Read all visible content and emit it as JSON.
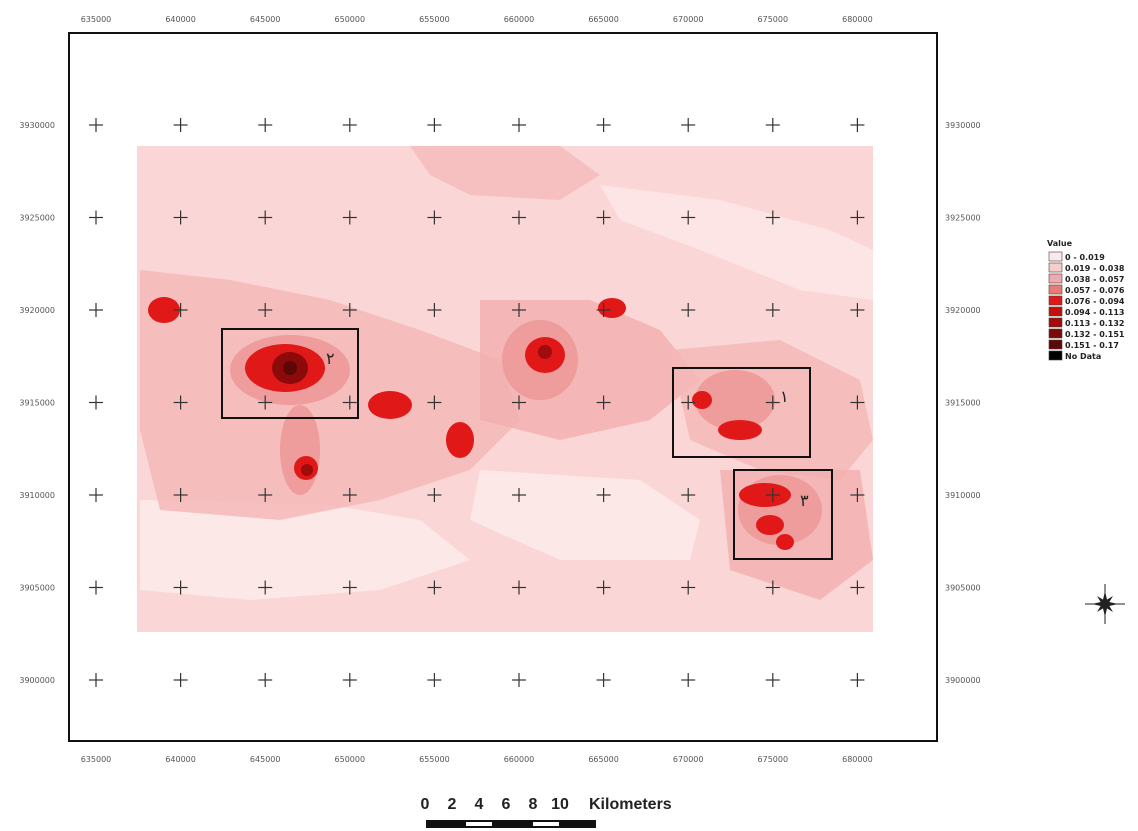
{
  "map": {
    "x_ticks": [
      "635000",
      "640000",
      "645000",
      "650000",
      "655000",
      "660000",
      "665000",
      "670000",
      "675000",
      "680000"
    ],
    "y_ticks": [
      "3930000",
      "3925000",
      "3920000",
      "3915000",
      "3910000",
      "3905000",
      "3900000"
    ]
  },
  "sites": [
    {
      "label": "١"
    },
    {
      "label": "٢"
    },
    {
      "label": "٣"
    }
  ],
  "legend": {
    "title": "Value",
    "items": [
      {
        "label": "0 - 0.019",
        "color": "#fbe9e9"
      },
      {
        "label": "0.019 - 0.038",
        "color": "#f6cccc"
      },
      {
        "label": "0.038 - 0.057",
        "color": "#efaaaa"
      },
      {
        "label": "0.057 - 0.076",
        "color": "#e97a7a"
      },
      {
        "label": "0.076 - 0.094",
        "color": "#e01818"
      },
      {
        "label": "0.094 - 0.113",
        "color": "#c40f0f"
      },
      {
        "label": "0.113 - 0.132",
        "color": "#a00b0b"
      },
      {
        "label": "0.132 - 0.151",
        "color": "#7e0909"
      },
      {
        "label": "0.151 - 0.17",
        "color": "#5c0606"
      },
      {
        "label": "No Data",
        "color": "#000000"
      }
    ]
  },
  "scale_bar": {
    "numbers": [
      "0",
      "2",
      "4",
      "6",
      "8",
      "10"
    ],
    "unit": "Kilometers"
  },
  "colors": {
    "base": "#fbd6d6",
    "light": "#f6c0c0",
    "mid": "#ee9c9c",
    "hot": "#e01010",
    "dark": "#8c0a0a"
  }
}
